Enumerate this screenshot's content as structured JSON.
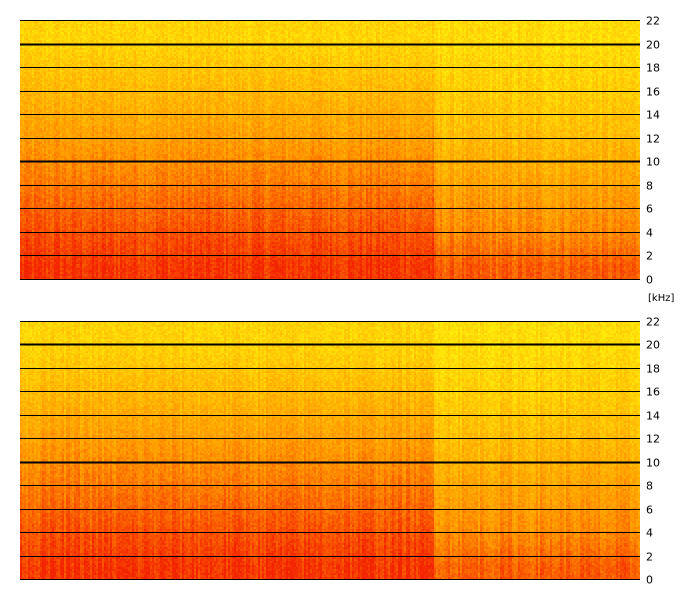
{
  "chart_data": [
    {
      "type": "heatmap",
      "channel": "top",
      "title": "",
      "xlabel": "",
      "ylabel": "",
      "y_unit": "",
      "ylim": [
        0,
        22
      ],
      "y_ticks": [
        0,
        2,
        4,
        6,
        8,
        10,
        12,
        14,
        16,
        18,
        20,
        22
      ],
      "y_tick_labels": [
        "0",
        "2",
        "4",
        "6",
        "8",
        "10",
        "12",
        "14",
        "16",
        "18",
        "20",
        "22"
      ],
      "emphasized_gridlines": [
        10,
        20
      ],
      "grid": true,
      "colormap": [
        "#ffff00",
        "#ffcc00",
        "#ff9900",
        "#ff5500",
        "#ff2200"
      ],
      "x_segments": [
        {
          "x_start": 0,
          "x_end": 0.665,
          "energy_bands": [
            {
              "y_from": 0,
              "y_to": 2,
              "level": 0.92
            },
            {
              "y_from": 2,
              "y_to": 6,
              "level": 0.8
            },
            {
              "y_from": 6,
              "y_to": 10,
              "level": 0.62
            },
            {
              "y_from": 10,
              "y_to": 14,
              "level": 0.45
            },
            {
              "y_from": 14,
              "y_to": 18,
              "level": 0.3
            },
            {
              "y_from": 18,
              "y_to": 22,
              "level": 0.15
            }
          ]
        },
        {
          "x_start": 0.665,
          "x_end": 1.0,
          "energy_bands": [
            {
              "y_from": 0,
              "y_to": 2,
              "level": 0.75
            },
            {
              "y_from": 2,
              "y_to": 6,
              "level": 0.55
            },
            {
              "y_from": 6,
              "y_to": 10,
              "level": 0.42
            },
            {
              "y_from": 10,
              "y_to": 14,
              "level": 0.28
            },
            {
              "y_from": 14,
              "y_to": 18,
              "level": 0.18
            },
            {
              "y_from": 18,
              "y_to": 22,
              "level": 0.1
            }
          ]
        }
      ]
    },
    {
      "type": "heatmap",
      "channel": "bottom",
      "title": "",
      "xlabel": "",
      "ylabel": "",
      "y_unit": "[kHz]",
      "ylim": [
        0,
        22
      ],
      "y_ticks": [
        0,
        2,
        4,
        6,
        8,
        10,
        12,
        14,
        16,
        18,
        20,
        22
      ],
      "y_tick_labels": [
        "0",
        "2",
        "4",
        "6",
        "8",
        "10",
        "12",
        "14",
        "16",
        "18",
        "20",
        "22"
      ],
      "emphasized_gridlines": [
        10,
        20
      ],
      "grid": true,
      "colormap": [
        "#ffff00",
        "#ffcc00",
        "#ff9900",
        "#ff5500",
        "#ff2200"
      ],
      "x_segments": [
        {
          "x_start": 0,
          "x_end": 0.665,
          "energy_bands": [
            {
              "y_from": 0,
              "y_to": 2,
              "level": 0.92
            },
            {
              "y_from": 2,
              "y_to": 6,
              "level": 0.8
            },
            {
              "y_from": 6,
              "y_to": 10,
              "level": 0.62
            },
            {
              "y_from": 10,
              "y_to": 14,
              "level": 0.45
            },
            {
              "y_from": 14,
              "y_to": 18,
              "level": 0.3
            },
            {
              "y_from": 18,
              "y_to": 22,
              "level": 0.15
            }
          ]
        },
        {
          "x_start": 0.665,
          "x_end": 1.0,
          "energy_bands": [
            {
              "y_from": 0,
              "y_to": 2,
              "level": 0.75
            },
            {
              "y_from": 2,
              "y_to": 6,
              "level": 0.55
            },
            {
              "y_from": 6,
              "y_to": 10,
              "level": 0.42
            },
            {
              "y_from": 10,
              "y_to": 14,
              "level": 0.28
            },
            {
              "y_from": 14,
              "y_to": 18,
              "level": 0.18
            },
            {
              "y_from": 18,
              "y_to": 22,
              "level": 0.1
            }
          ]
        }
      ]
    }
  ]
}
